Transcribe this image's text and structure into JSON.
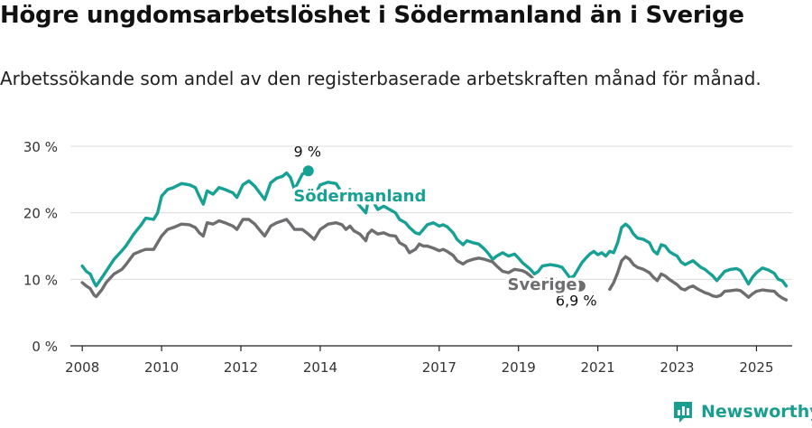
{
  "header": {
    "title": "Högre ungdomsarbetslöshet i Södermanland än i Sverige",
    "subtitle": "Arbetssökande som andel av den registerbaserade arbetskraften månad för månad."
  },
  "brand": {
    "name": "Newsworthy",
    "icon": "bar-chart-logo-icon",
    "color": "#1a9e8f"
  },
  "chart_data": {
    "type": "line",
    "x_unit": "year (monthly data)",
    "xlim": [
      2007.7,
      2025.9
    ],
    "ylim": [
      0,
      30
    ],
    "ylabel": "",
    "y_ticks": [
      0,
      10,
      20,
      30
    ],
    "y_tick_labels": [
      "0 %",
      "10 %",
      "20 %",
      "30 %"
    ],
    "x_ticks": [
      2008,
      2010,
      2012,
      2014,
      2017,
      2019,
      2021,
      2023,
      2025
    ],
    "x_tick_labels": [
      "2008",
      "2010",
      "2012",
      "2014",
      "2017",
      "2019",
      "2021",
      "2023",
      "2025"
    ],
    "grid": "horizontal",
    "legend": "inline labels",
    "series": [
      {
        "name": "Södermanland",
        "color": "#17a094",
        "end_label": "9 %",
        "points": [
          [
            2008.0,
            12.0
          ],
          [
            2008.1,
            11.2
          ],
          [
            2008.2,
            10.8
          ],
          [
            2008.3,
            9.5
          ],
          [
            2008.35,
            9.0
          ],
          [
            2008.5,
            10.3
          ],
          [
            2008.6,
            11.2
          ],
          [
            2008.8,
            13.0
          ],
          [
            2009.0,
            14.3
          ],
          [
            2009.1,
            15.0
          ],
          [
            2009.3,
            16.8
          ],
          [
            2009.5,
            18.3
          ],
          [
            2009.6,
            19.2
          ],
          [
            2009.8,
            19.0
          ],
          [
            2009.9,
            20.0
          ],
          [
            2010.0,
            22.5
          ],
          [
            2010.15,
            23.5
          ],
          [
            2010.3,
            23.8
          ],
          [
            2010.5,
            24.4
          ],
          [
            2010.7,
            24.2
          ],
          [
            2010.85,
            23.8
          ],
          [
            2010.95,
            22.5
          ],
          [
            2011.05,
            21.3
          ],
          [
            2011.15,
            23.3
          ],
          [
            2011.3,
            22.8
          ],
          [
            2011.45,
            23.8
          ],
          [
            2011.6,
            23.5
          ],
          [
            2011.8,
            23.0
          ],
          [
            2011.9,
            22.3
          ],
          [
            2012.05,
            24.2
          ],
          [
            2012.2,
            24.8
          ],
          [
            2012.35,
            24.0
          ],
          [
            2012.5,
            22.8
          ],
          [
            2012.6,
            22.0
          ],
          [
            2012.75,
            24.5
          ],
          [
            2012.9,
            25.2
          ],
          [
            2013.05,
            25.5
          ],
          [
            2013.15,
            26.0
          ],
          [
            2013.25,
            25.3
          ],
          [
            2013.35,
            23.5
          ],
          [
            2013.55,
            25.8
          ],
          [
            2013.7,
            26.3
          ]
        ]
      },
      {
        "name": "Södermanland",
        "color": "#17a094",
        "points": [
          [
            2013.85,
            22.5
          ],
          [
            2014.0,
            24.2
          ],
          [
            2014.2,
            24.6
          ],
          [
            2014.4,
            24.4
          ],
          [
            2014.55,
            23.0
          ],
          [
            2014.65,
            22.0
          ],
          [
            2014.75,
            23.5
          ],
          [
            2014.85,
            22.0
          ],
          [
            2015.0,
            21.0
          ],
          [
            2015.15,
            20.0
          ],
          [
            2015.2,
            21.5
          ],
          [
            2015.3,
            22.0
          ],
          [
            2015.45,
            20.5
          ],
          [
            2015.6,
            21.0
          ],
          [
            2015.75,
            20.5
          ],
          [
            2015.9,
            20.0
          ],
          [
            2016.0,
            19.0
          ],
          [
            2016.15,
            18.5
          ],
          [
            2016.25,
            17.8
          ],
          [
            2016.4,
            17.0
          ],
          [
            2016.5,
            16.8
          ],
          [
            2016.6,
            17.5
          ],
          [
            2016.7,
            18.2
          ],
          [
            2016.85,
            18.5
          ],
          [
            2017.0,
            18.0
          ],
          [
            2017.1,
            18.2
          ],
          [
            2017.2,
            17.9
          ],
          [
            2017.35,
            17.0
          ],
          [
            2017.45,
            16.0
          ],
          [
            2017.6,
            15.2
          ],
          [
            2017.7,
            15.8
          ],
          [
            2017.85,
            15.5
          ],
          [
            2018.0,
            15.3
          ],
          [
            2018.15,
            14.5
          ],
          [
            2018.25,
            13.8
          ],
          [
            2018.35,
            13.0
          ],
          [
            2018.45,
            13.5
          ],
          [
            2018.6,
            14.0
          ],
          [
            2018.75,
            13.5
          ],
          [
            2018.9,
            13.8
          ],
          [
            2019.0,
            13.2
          ],
          [
            2019.1,
            12.5
          ],
          [
            2019.2,
            12.0
          ],
          [
            2019.3,
            11.5
          ],
          [
            2019.4,
            10.8
          ],
          [
            2019.5,
            11.2
          ],
          [
            2019.6,
            12.0
          ],
          [
            2019.8,
            12.2
          ],
          [
            2020.0,
            12.0
          ],
          [
            2020.1,
            11.8
          ],
          [
            2020.2,
            11.0
          ],
          [
            2020.3,
            10.2
          ],
          [
            2020.4,
            10.5
          ],
          [
            2020.5,
            11.5
          ],
          [
            2020.6,
            12.5
          ],
          [
            2020.7,
            13.2
          ],
          [
            2020.8,
            13.8
          ],
          [
            2020.9,
            14.2
          ],
          [
            2021.0,
            13.7
          ],
          [
            2021.1,
            14.0
          ],
          [
            2021.2,
            13.5
          ],
          [
            2021.3,
            14.2
          ],
          [
            2021.4,
            14.0
          ],
          [
            2021.5,
            15.5
          ],
          [
            2021.6,
            17.8
          ],
          [
            2021.7,
            18.3
          ],
          [
            2021.8,
            17.8
          ],
          [
            2021.9,
            16.8
          ],
          [
            2022.0,
            16.2
          ],
          [
            2022.15,
            16.0
          ],
          [
            2022.3,
            15.5
          ],
          [
            2022.4,
            14.3
          ],
          [
            2022.5,
            13.8
          ],
          [
            2022.6,
            15.2
          ],
          [
            2022.7,
            15.0
          ],
          [
            2022.8,
            14.2
          ],
          [
            2022.9,
            13.8
          ],
          [
            2023.0,
            13.5
          ],
          [
            2023.1,
            12.6
          ],
          [
            2023.2,
            12.2
          ],
          [
            2023.3,
            12.5
          ],
          [
            2023.4,
            12.8
          ],
          [
            2023.5,
            12.3
          ],
          [
            2023.6,
            11.8
          ],
          [
            2023.7,
            11.5
          ],
          [
            2023.8,
            11.0
          ],
          [
            2023.9,
            10.5
          ],
          [
            2024.0,
            9.8
          ],
          [
            2024.1,
            10.5
          ],
          [
            2024.2,
            11.2
          ],
          [
            2024.35,
            11.5
          ],
          [
            2024.5,
            11.6
          ],
          [
            2024.6,
            11.3
          ],
          [
            2024.7,
            10.3
          ],
          [
            2024.8,
            9.3
          ],
          [
            2024.9,
            10.3
          ],
          [
            2025.0,
            11.0
          ],
          [
            2025.15,
            11.7
          ],
          [
            2025.3,
            11.4
          ],
          [
            2025.45,
            10.9
          ],
          [
            2025.55,
            10.0
          ],
          [
            2025.65,
            9.8
          ],
          [
            2025.75,
            9.0
          ]
        ]
      },
      {
        "name": "Sverige",
        "color": "#6e6e70",
        "end_label": "6,9 %",
        "points": [
          [
            2008.0,
            9.5
          ],
          [
            2008.1,
            9.0
          ],
          [
            2008.2,
            8.6
          ],
          [
            2008.3,
            7.6
          ],
          [
            2008.35,
            7.4
          ],
          [
            2008.5,
            8.5
          ],
          [
            2008.6,
            9.5
          ],
          [
            2008.8,
            10.8
          ],
          [
            2009.0,
            11.5
          ],
          [
            2009.1,
            12.2
          ],
          [
            2009.3,
            13.8
          ],
          [
            2009.5,
            14.3
          ],
          [
            2009.6,
            14.5
          ],
          [
            2009.8,
            14.5
          ],
          [
            2009.9,
            15.5
          ],
          [
            2010.0,
            16.5
          ],
          [
            2010.15,
            17.5
          ],
          [
            2010.3,
            17.8
          ],
          [
            2010.5,
            18.3
          ],
          [
            2010.7,
            18.2
          ],
          [
            2010.85,
            17.8
          ],
          [
            2010.95,
            17.0
          ],
          [
            2011.05,
            16.5
          ],
          [
            2011.15,
            18.5
          ],
          [
            2011.3,
            18.3
          ],
          [
            2011.45,
            18.8
          ],
          [
            2011.6,
            18.5
          ],
          [
            2011.8,
            18.0
          ],
          [
            2011.9,
            17.5
          ],
          [
            2012.05,
            19.0
          ],
          [
            2012.2,
            19.0
          ],
          [
            2012.35,
            18.3
          ],
          [
            2012.5,
            17.2
          ],
          [
            2012.6,
            16.5
          ],
          [
            2012.75,
            18.0
          ],
          [
            2012.9,
            18.5
          ],
          [
            2013.05,
            18.8
          ],
          [
            2013.15,
            19.0
          ],
          [
            2013.25,
            18.3
          ],
          [
            2013.35,
            17.5
          ],
          [
            2013.55,
            17.5
          ],
          [
            2013.7,
            16.8
          ],
          [
            2013.85,
            16.0
          ],
          [
            2014.0,
            17.5
          ],
          [
            2014.2,
            18.3
          ],
          [
            2014.4,
            18.5
          ],
          [
            2014.55,
            18.2
          ],
          [
            2014.65,
            17.5
          ],
          [
            2014.75,
            18.0
          ],
          [
            2014.85,
            17.3
          ],
          [
            2015.0,
            16.8
          ],
          [
            2015.15,
            15.8
          ],
          [
            2015.2,
            16.8
          ],
          [
            2015.3,
            17.4
          ],
          [
            2015.45,
            16.8
          ],
          [
            2015.6,
            17.0
          ],
          [
            2015.75,
            16.6
          ],
          [
            2015.9,
            16.5
          ],
          [
            2016.0,
            15.5
          ],
          [
            2016.15,
            15.0
          ],
          [
            2016.25,
            14.0
          ],
          [
            2016.4,
            14.5
          ],
          [
            2016.5,
            15.3
          ],
          [
            2016.6,
            15.0
          ],
          [
            2016.7,
            15.0
          ],
          [
            2016.85,
            14.7
          ],
          [
            2017.0,
            14.3
          ],
          [
            2017.1,
            14.5
          ],
          [
            2017.2,
            14.2
          ],
          [
            2017.35,
            13.6
          ],
          [
            2017.45,
            12.8
          ],
          [
            2017.6,
            12.3
          ],
          [
            2017.7,
            12.7
          ],
          [
            2017.85,
            13.0
          ],
          [
            2018.0,
            13.2
          ],
          [
            2018.15,
            13.0
          ],
          [
            2018.25,
            12.8
          ],
          [
            2018.35,
            12.6
          ],
          [
            2018.45,
            12.0
          ],
          [
            2018.6,
            11.2
          ],
          [
            2018.75,
            11.0
          ],
          [
            2018.9,
            11.5
          ],
          [
            2019.0,
            11.4
          ],
          [
            2019.1,
            11.3
          ],
          [
            2019.2,
            11.0
          ],
          [
            2019.3,
            10.5
          ],
          [
            2019.4,
            9.9
          ],
          [
            2019.5,
            9.6
          ],
          [
            2019.6,
            10.0
          ],
          [
            2019.8,
            10.1
          ],
          [
            2020.0,
            10.0
          ],
          [
            2020.1,
            9.8
          ],
          [
            2020.2,
            9.4
          ],
          [
            2020.3,
            8.9
          ],
          [
            2020.4,
            8.5
          ],
          [
            2020.5,
            8.8
          ],
          [
            2020.55,
            9.0
          ]
        ]
      },
      {
        "name": "Sverige",
        "color": "#6e6e70",
        "points": [
          [
            2021.3,
            8.5
          ],
          [
            2021.4,
            9.5
          ],
          [
            2021.5,
            11.0
          ],
          [
            2021.6,
            12.8
          ],
          [
            2021.7,
            13.4
          ],
          [
            2021.8,
            13.0
          ],
          [
            2021.9,
            12.2
          ],
          [
            2022.0,
            11.8
          ],
          [
            2022.15,
            11.5
          ],
          [
            2022.3,
            11.0
          ],
          [
            2022.4,
            10.3
          ],
          [
            2022.5,
            9.8
          ],
          [
            2022.6,
            10.8
          ],
          [
            2022.7,
            10.5
          ],
          [
            2022.8,
            10.0
          ],
          [
            2022.9,
            9.6
          ],
          [
            2023.0,
            9.2
          ],
          [
            2023.1,
            8.6
          ],
          [
            2023.2,
            8.4
          ],
          [
            2023.3,
            8.8
          ],
          [
            2023.4,
            9.0
          ],
          [
            2023.5,
            8.6
          ],
          [
            2023.6,
            8.3
          ],
          [
            2023.7,
            8.0
          ],
          [
            2023.8,
            7.8
          ],
          [
            2023.9,
            7.5
          ],
          [
            2024.0,
            7.4
          ],
          [
            2024.1,
            7.6
          ],
          [
            2024.2,
            8.2
          ],
          [
            2024.35,
            8.3
          ],
          [
            2024.5,
            8.4
          ],
          [
            2024.6,
            8.3
          ],
          [
            2024.7,
            7.8
          ],
          [
            2024.8,
            7.3
          ],
          [
            2024.9,
            7.8
          ],
          [
            2025.0,
            8.2
          ],
          [
            2025.15,
            8.4
          ],
          [
            2025.3,
            8.3
          ],
          [
            2025.45,
            8.2
          ],
          [
            2025.55,
            7.6
          ],
          [
            2025.65,
            7.2
          ],
          [
            2025.75,
            6.9
          ]
        ]
      }
    ]
  }
}
